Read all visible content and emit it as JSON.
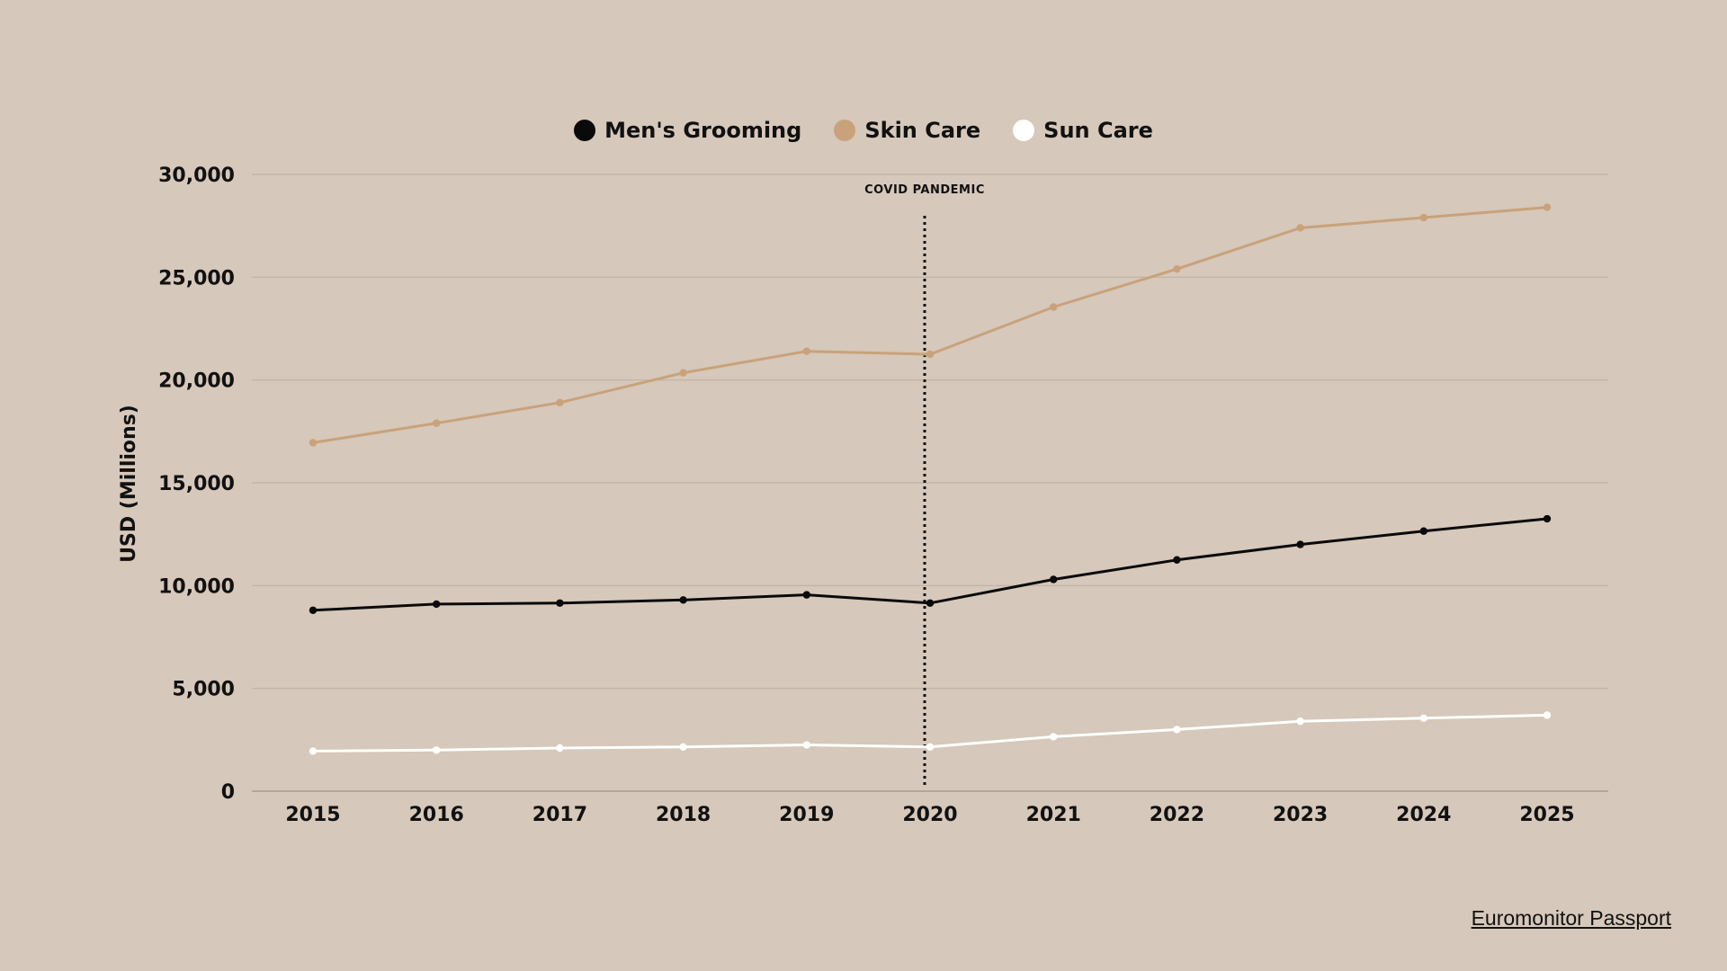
{
  "chart_data": {
    "type": "line",
    "x": [
      2015,
      2016,
      2017,
      2018,
      2019,
      2020,
      2021,
      2022,
      2023,
      2024,
      2025
    ],
    "x_tick_labels": [
      "2015",
      "2016",
      "2017",
      "2018",
      "2019",
      "2020",
      "2021",
      "2022",
      "2023",
      "2024",
      "2025"
    ],
    "series": [
      {
        "name": "Men's Grooming",
        "color": "#0a0a0a",
        "values": [
          8800,
          9100,
          9150,
          9300,
          9550,
          9150,
          10300,
          11250,
          12000,
          12650,
          13250
        ]
      },
      {
        "name": "Skin Care",
        "color": "#c9a27b",
        "values": [
          16950,
          17900,
          18900,
          20350,
          21400,
          21250,
          23550,
          25400,
          27400,
          27900,
          28400
        ]
      },
      {
        "name": "Sun Care",
        "color": "#ffffff",
        "values": [
          1950,
          2000,
          2100,
          2150,
          2250,
          2150,
          2650,
          3000,
          3400,
          3550,
          3700
        ]
      }
    ],
    "ylabel": "USD (Millions)",
    "xlabel": "",
    "ylim": [
      0,
      30000
    ],
    "y_ticks": [
      0,
      5000,
      10000,
      15000,
      20000,
      25000,
      30000
    ],
    "y_tick_labels": [
      "0",
      "5,000",
      "10,000",
      "15,000",
      "20,000",
      "25,000",
      "30,000"
    ],
    "grid": true,
    "legend_position": "top-center",
    "annotation": {
      "label": "COVID PANDEMIC",
      "x": 2020,
      "style": "dotted-vertical-line"
    }
  },
  "source": {
    "label": "Euromonitor Passport"
  },
  "colors": {
    "background": "#d6c8ba",
    "grid": "#bfb1a3",
    "text": "#111111"
  }
}
